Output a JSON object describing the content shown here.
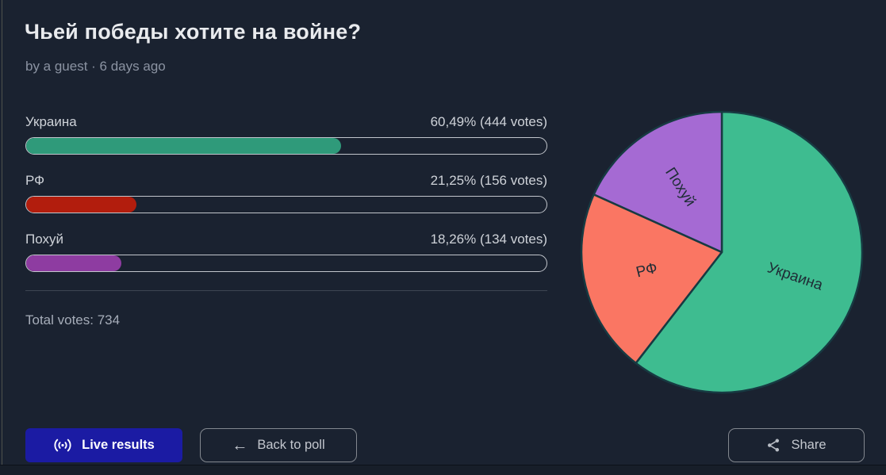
{
  "page": {
    "title": "Чьей победы хотите на войне?",
    "byline": "by a guest · 6 days ago",
    "total_votes": "Total votes: 734"
  },
  "options": [
    {
      "label": "Украина",
      "value": "60,49% (444 votes)",
      "percent": 60.49,
      "bar_color": "#2f9a7a"
    },
    {
      "label": "РФ",
      "value": "21,25% (156 votes)",
      "percent": 21.25,
      "bar_color": "#b21d0d"
    },
    {
      "label": "Похуй",
      "value": "18,26% (134 votes)",
      "percent": 18.26,
      "bar_color": "#8e3ca1"
    }
  ],
  "buttons": {
    "live": "Live results",
    "back": "Back to poll",
    "share": "Share"
  },
  "icons": {
    "live": "live-broadcast-icon",
    "back": "back-arrow-icon",
    "share": "share-icon"
  },
  "colors": {
    "background": "#1a2230",
    "accent_blue": "#1b1ba3",
    "bar_track_border": "#c2c6cc",
    "pie_stroke": "#173a42"
  },
  "chart_data": {
    "type": "pie",
    "title": "",
    "categories": [
      "Украина",
      "РФ",
      "Похуй"
    ],
    "values": [
      60.49,
      21.25,
      18.26
    ],
    "votes": [
      444,
      156,
      134
    ],
    "total_votes": 734,
    "colors": [
      "#3ebc90",
      "#fa7663",
      "#a56ad3"
    ],
    "start_angle_deg": 0,
    "direction": "clockwise",
    "labels_inside": true,
    "label_distance": 0.55,
    "label_color": "#1f2d36",
    "legend": "none"
  }
}
